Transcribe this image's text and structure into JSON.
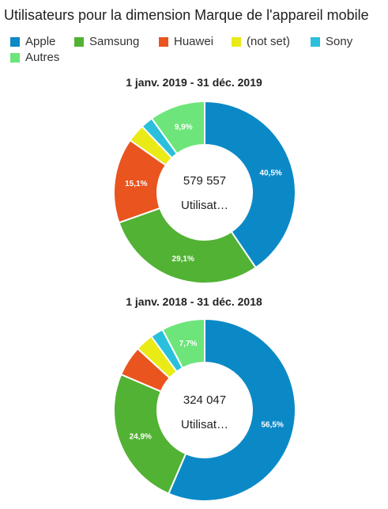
{
  "title": "Utilisateurs pour la dimension Marque de l'appareil mobile",
  "colors": {
    "Apple": "#0b89c7",
    "Samsung": "#52b234",
    "Huawei": "#ea541e",
    "(not set)": "#eaea17",
    "Sony": "#2ac0dc",
    "Autres": "#6de57a"
  },
  "legend": [
    "Apple",
    "Samsung",
    "Huawei",
    "(not set)",
    "Sony",
    "Autres"
  ],
  "chart_data": [
    {
      "type": "pie",
      "title": "1 janv. 2019 - 31 déc. 2019",
      "center_value": "579 557",
      "center_label": "Utilisat…",
      "categories": [
        "Apple",
        "Samsung",
        "Huawei",
        "(not set)",
        "Sony",
        "Autres"
      ],
      "values": [
        40.5,
        29.1,
        15.1,
        3.2,
        2.2,
        9.9
      ],
      "labels": [
        "40,5%",
        "29,1%",
        "15,1%",
        "",
        "",
        "9,9%"
      ]
    },
    {
      "type": "pie",
      "title": "1 janv. 2018 - 31 déc. 2018",
      "center_value": "324 047",
      "center_label": "Utilisat…",
      "categories": [
        "Apple",
        "Samsung",
        "Huawei",
        "(not set)",
        "Sony",
        "Autres"
      ],
      "values": [
        56.5,
        24.9,
        5.4,
        3.2,
        2.3,
        7.7
      ],
      "labels": [
        "56,5%",
        "24,9%",
        "",
        "",
        "",
        "7,7%"
      ]
    }
  ]
}
